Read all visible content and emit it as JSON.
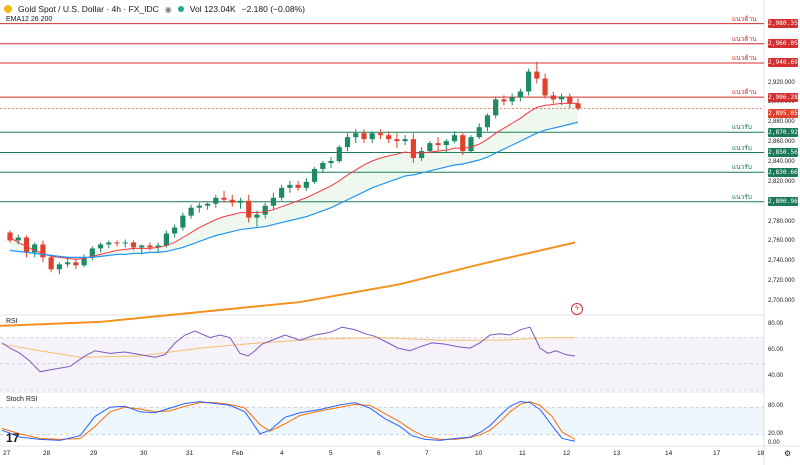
{
  "header": {
    "symbol": "Gold Spot / U.S. Dollar · 4h · FX_IDC",
    "volume": "Vol 123.04K",
    "change": "−2.180 (−0.08%)",
    "indicator": "EMA12 26 200"
  },
  "levels": [
    {
      "label": "แนวต้าน",
      "price": "2,980.356",
      "value": 2980.356,
      "kind": "resistance"
    },
    {
      "label": "แนวต้าน",
      "price": "2,960.058",
      "value": 2960.058,
      "kind": "resistance"
    },
    {
      "label": "แนวต้าน",
      "price": "2,940.696",
      "value": 2940.696,
      "kind": "resistance"
    },
    {
      "label": "แนวต้าน",
      "price": "2,906.280",
      "value": 2906.28,
      "kind": "resistance"
    },
    {
      "label": "แนวรับ",
      "price": "2,870.923",
      "value": 2870.923,
      "kind": "support"
    },
    {
      "label": "แนวรับ",
      "price": "2,850.563",
      "value": 2850.563,
      "kind": "support"
    },
    {
      "label": "แนวรับ",
      "price": "2,830.660",
      "value": 2830.66,
      "kind": "support"
    },
    {
      "label": "แนวรับ",
      "price": "2,800.964",
      "value": 2800.964,
      "kind": "support"
    }
  ],
  "current_price": "2,895.050",
  "rsi_title": "RSI",
  "stoch_title": "Stoch RSI",
  "colors": {
    "resistance": "#d32f2f",
    "support": "#1b7a5a",
    "up": "#1e8a63",
    "down": "#e0412b",
    "ema12": "#f23645",
    "ema26": "#2196f3",
    "ema200": "#f5921e",
    "rsi": "#7e57c2"
  },
  "chart_data": {
    "type": "candlestick",
    "x_ticks": [
      "27",
      "28",
      "29",
      "30",
      "31",
      "Feb",
      "4",
      "5",
      "6",
      "7",
      "10",
      "11",
      "12",
      "13",
      "14",
      "17",
      "18"
    ],
    "price_axis": [
      "2,920.000",
      "2,900.000",
      "2,880.000",
      "2,860.000",
      "2,840.000",
      "2,820.000",
      "2,800.000",
      "2,780.000",
      "2,760.000",
      "2,740.000",
      "2,720.000",
      "2,700.000"
    ],
    "ylim": [
      2690,
      2992
    ],
    "candles": [
      [
        2770,
        2772,
        2760,
        2762
      ],
      [
        2762,
        2768,
        2758,
        2765
      ],
      [
        2765,
        2767,
        2745,
        2750
      ],
      [
        2750,
        2760,
        2745,
        2758
      ],
      [
        2758,
        2762,
        2740,
        2745
      ],
      [
        2745,
        2748,
        2730,
        2733
      ],
      [
        2733,
        2740,
        2728,
        2738
      ],
      [
        2738,
        2746,
        2735,
        2740
      ],
      [
        2740,
        2744,
        2733,
        2737
      ],
      [
        2737,
        2748,
        2735,
        2745
      ],
      [
        2745,
        2756,
        2742,
        2754
      ],
      [
        2754,
        2760,
        2750,
        2758
      ],
      [
        2758,
        2762,
        2754,
        2760
      ],
      [
        2760,
        2762,
        2756,
        2759
      ],
      [
        2759,
        2763,
        2755,
        2760
      ],
      [
        2760,
        2762,
        2752,
        2755
      ],
      [
        2755,
        2758,
        2748,
        2757
      ],
      [
        2757,
        2760,
        2752,
        2755
      ],
      [
        2755,
        2760,
        2750,
        2757
      ],
      [
        2757,
        2772,
        2755,
        2769
      ],
      [
        2769,
        2778,
        2765,
        2775
      ],
      [
        2775,
        2790,
        2772,
        2787
      ],
      [
        2787,
        2798,
        2784,
        2795
      ],
      [
        2795,
        2800,
        2790,
        2797
      ],
      [
        2797,
        2800,
        2793,
        2799
      ],
      [
        2799,
        2808,
        2795,
        2805
      ],
      [
        2805,
        2812,
        2800,
        2803
      ],
      [
        2803,
        2808,
        2796,
        2800
      ],
      [
        2800,
        2805,
        2794,
        2802
      ],
      [
        2802,
        2808,
        2780,
        2785
      ],
      [
        2785,
        2792,
        2776,
        2788
      ],
      [
        2788,
        2800,
        2784,
        2797
      ],
      [
        2797,
        2810,
        2793,
        2805
      ],
      [
        2805,
        2818,
        2802,
        2815
      ],
      [
        2815,
        2822,
        2810,
        2818
      ],
      [
        2818,
        2822,
        2812,
        2815
      ],
      [
        2815,
        2825,
        2812,
        2821
      ],
      [
        2821,
        2836,
        2819,
        2834
      ],
      [
        2834,
        2842,
        2830,
        2840
      ],
      [
        2840,
        2846,
        2835,
        2842
      ],
      [
        2842,
        2858,
        2840,
        2856
      ],
      [
        2856,
        2870,
        2852,
        2866
      ],
      [
        2866,
        2874,
        2860,
        2870
      ],
      [
        2870,
        2874,
        2860,
        2864
      ],
      [
        2864,
        2872,
        2860,
        2870
      ],
      [
        2870,
        2874,
        2864,
        2868
      ],
      [
        2868,
        2872,
        2860,
        2864
      ],
      [
        2864,
        2870,
        2855,
        2862
      ],
      [
        2862,
        2868,
        2858,
        2864
      ],
      [
        2864,
        2870,
        2840,
        2845
      ],
      [
        2845,
        2856,
        2842,
        2852
      ],
      [
        2852,
        2862,
        2850,
        2860
      ],
      [
        2860,
        2866,
        2852,
        2858
      ],
      [
        2858,
        2864,
        2850,
        2862
      ],
      [
        2862,
        2872,
        2860,
        2868
      ],
      [
        2868,
        2870,
        2848,
        2852
      ],
      [
        2852,
        2868,
        2850,
        2866
      ],
      [
        2866,
        2880,
        2864,
        2876
      ],
      [
        2876,
        2890,
        2872,
        2888
      ],
      [
        2888,
        2906,
        2885,
        2904
      ],
      [
        2904,
        2908,
        2898,
        2902
      ],
      [
        2902,
        2910,
        2898,
        2906
      ],
      [
        2906,
        2915,
        2902,
        2912
      ],
      [
        2912,
        2935,
        2908,
        2932
      ],
      [
        2932,
        2942,
        2920,
        2925
      ],
      [
        2925,
        2930,
        2905,
        2908
      ],
      [
        2908,
        2912,
        2900,
        2904
      ],
      [
        2904,
        2910,
        2898,
        2907
      ],
      [
        2907,
        2910,
        2895,
        2900
      ],
      [
        2900,
        2905,
        2893,
        2895
      ]
    ],
    "ema12": [
      2765,
      2760,
      2756,
      2752,
      2749,
      2746,
      2745,
      2744,
      2743,
      2744,
      2746,
      2748,
      2750,
      2752,
      2753,
      2754,
      2754,
      2754,
      2755,
      2757,
      2760,
      2765,
      2770,
      2775,
      2779,
      2783,
      2786,
      2788,
      2790,
      2790,
      2790,
      2791,
      2793,
      2796,
      2799,
      2802,
      2805,
      2809,
      2813,
      2817,
      2822,
      2828,
      2833,
      2838,
      2842,
      2845,
      2847,
      2849,
      2851,
      2850,
      2850,
      2851,
      2852,
      2853,
      2855,
      2855,
      2856,
      2859,
      2864,
      2870,
      2875,
      2880,
      2885,
      2891,
      2896,
      2898,
      2899,
      2900,
      2900,
      2900
    ],
    "ema26": [
      2752,
      2751,
      2750,
      2749,
      2748,
      2747,
      2746,
      2745,
      2745,
      2745,
      2745,
      2746,
      2747,
      2748,
      2748,
      2749,
      2749,
      2750,
      2750,
      2751,
      2753,
      2755,
      2758,
      2761,
      2764,
      2767,
      2769,
      2771,
      2773,
      2774,
      2775,
      2776,
      2778,
      2780,
      2782,
      2784,
      2786,
      2789,
      2792,
      2795,
      2799,
      2803,
      2807,
      2811,
      2815,
      2818,
      2821,
      2824,
      2827,
      2828,
      2830,
      2832,
      2834,
      2836,
      2838,
      2839,
      2841,
      2843,
      2846,
      2850,
      2854,
      2858,
      2862,
      2866,
      2870,
      2873,
      2875,
      2877,
      2879,
      2881
    ],
    "ema200": [
      [
        0,
        2676
      ],
      [
        100,
        2680
      ],
      [
        200,
        2690
      ],
      [
        300,
        2700
      ],
      [
        400,
        2718
      ],
      [
        480,
        2738
      ],
      [
        575,
        2760
      ]
    ],
    "rsi": [
      [
        2,
        66
      ],
      [
        10,
        62
      ],
      [
        20,
        58
      ],
      [
        30,
        52
      ],
      [
        40,
        44
      ],
      [
        55,
        46
      ],
      [
        70,
        48
      ],
      [
        85,
        56
      ],
      [
        95,
        60
      ],
      [
        110,
        58
      ],
      [
        125,
        59
      ],
      [
        140,
        57
      ],
      [
        155,
        55
      ],
      [
        165,
        57
      ],
      [
        175,
        66
      ],
      [
        185,
        72
      ],
      [
        195,
        75
      ],
      [
        210,
        70
      ],
      [
        220,
        72
      ],
      [
        230,
        70
      ],
      [
        240,
        58
      ],
      [
        248,
        56
      ],
      [
        255,
        60
      ],
      [
        262,
        65
      ],
      [
        272,
        68
      ],
      [
        285,
        72
      ],
      [
        300,
        68
      ],
      [
        315,
        72
      ],
      [
        330,
        74
      ],
      [
        342,
        78
      ],
      [
        355,
        76
      ],
      [
        365,
        73
      ],
      [
        375,
        71
      ],
      [
        388,
        66
      ],
      [
        398,
        62
      ],
      [
        410,
        60
      ],
      [
        420,
        63
      ],
      [
        432,
        66
      ],
      [
        445,
        65
      ],
      [
        458,
        63
      ],
      [
        470,
        62
      ],
      [
        480,
        66
      ],
      [
        490,
        72
      ],
      [
        500,
        73
      ],
      [
        510,
        72
      ],
      [
        520,
        76
      ],
      [
        530,
        78
      ],
      [
        540,
        62
      ],
      [
        548,
        58
      ],
      [
        556,
        60
      ],
      [
        566,
        57
      ],
      [
        575,
        56
      ]
    ],
    "rsi_ma": [
      [
        2,
        65
      ],
      [
        40,
        60
      ],
      [
        80,
        55
      ],
      [
        140,
        56
      ],
      [
        200,
        62
      ],
      [
        260,
        66
      ],
      [
        320,
        69
      ],
      [
        380,
        70
      ],
      [
        440,
        68
      ],
      [
        500,
        68
      ],
      [
        550,
        70
      ],
      [
        575,
        70
      ]
    ],
    "stoch_k": [
      [
        2,
        30
      ],
      [
        20,
        15
      ],
      [
        40,
        10
      ],
      [
        60,
        8
      ],
      [
        80,
        18
      ],
      [
        95,
        60
      ],
      [
        110,
        80
      ],
      [
        125,
        82
      ],
      [
        140,
        70
      ],
      [
        155,
        68
      ],
      [
        170,
        78
      ],
      [
        185,
        88
      ],
      [
        200,
        92
      ],
      [
        215,
        88
      ],
      [
        230,
        84
      ],
      [
        245,
        70
      ],
      [
        260,
        22
      ],
      [
        270,
        30
      ],
      [
        285,
        58
      ],
      [
        300,
        68
      ],
      [
        320,
        75
      ],
      [
        340,
        85
      ],
      [
        355,
        90
      ],
      [
        370,
        78
      ],
      [
        385,
        55
      ],
      [
        400,
        38
      ],
      [
        412,
        18
      ],
      [
        425,
        10
      ],
      [
        440,
        8
      ],
      [
        455,
        12
      ],
      [
        470,
        15
      ],
      [
        480,
        25
      ],
      [
        490,
        40
      ],
      [
        500,
        62
      ],
      [
        510,
        82
      ],
      [
        520,
        92
      ],
      [
        530,
        90
      ],
      [
        540,
        75
      ],
      [
        552,
        40
      ],
      [
        562,
        12
      ],
      [
        575,
        6
      ]
    ],
    "stoch_d": [
      [
        2,
        34
      ],
      [
        20,
        22
      ],
      [
        40,
        12
      ],
      [
        60,
        10
      ],
      [
        80,
        12
      ],
      [
        95,
        38
      ],
      [
        110,
        70
      ],
      [
        125,
        80
      ],
      [
        140,
        76
      ],
      [
        155,
        70
      ],
      [
        170,
        72
      ],
      [
        185,
        82
      ],
      [
        200,
        90
      ],
      [
        215,
        90
      ],
      [
        230,
        86
      ],
      [
        245,
        78
      ],
      [
        260,
        42
      ],
      [
        270,
        28
      ],
      [
        285,
        44
      ],
      [
        300,
        62
      ],
      [
        320,
        72
      ],
      [
        340,
        80
      ],
      [
        355,
        86
      ],
      [
        370,
        84
      ],
      [
        385,
        66
      ],
      [
        400,
        48
      ],
      [
        412,
        30
      ],
      [
        425,
        16
      ],
      [
        440,
        10
      ],
      [
        455,
        10
      ],
      [
        470,
        14
      ],
      [
        480,
        20
      ],
      [
        490,
        30
      ],
      [
        500,
        48
      ],
      [
        510,
        70
      ],
      [
        520,
        86
      ],
      [
        530,
        92
      ],
      [
        540,
        84
      ],
      [
        552,
        60
      ],
      [
        562,
        26
      ],
      [
        575,
        10
      ]
    ]
  }
}
